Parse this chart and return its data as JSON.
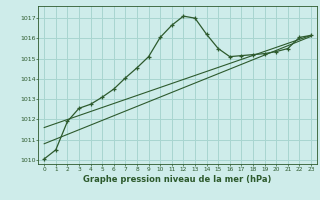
{
  "xlabel": "Graphe pression niveau de la mer (hPa)",
  "bg_color": "#ceecea",
  "grid_color": "#a8d5d0",
  "line_color": "#2d5a2d",
  "xlim": [
    -0.5,
    23.5
  ],
  "ylim": [
    1009.8,
    1017.6
  ],
  "yticks": [
    1010,
    1011,
    1012,
    1013,
    1014,
    1015,
    1016,
    1017
  ],
  "xticks": [
    0,
    1,
    2,
    3,
    4,
    5,
    6,
    7,
    8,
    9,
    10,
    11,
    12,
    13,
    14,
    15,
    16,
    17,
    18,
    19,
    20,
    21,
    22,
    23
  ],
  "main_x": [
    0,
    1,
    2,
    3,
    4,
    5,
    6,
    7,
    8,
    9,
    10,
    11,
    12,
    13,
    14,
    15,
    16,
    17,
    18,
    19,
    20,
    21,
    22,
    23
  ],
  "main_y": [
    1010.05,
    1010.5,
    1011.9,
    1012.55,
    1012.75,
    1013.1,
    1013.5,
    1014.05,
    1014.55,
    1015.1,
    1016.05,
    1016.65,
    1017.1,
    1017.0,
    1016.2,
    1015.5,
    1015.1,
    1015.15,
    1015.2,
    1015.25,
    1015.35,
    1015.5,
    1016.05,
    1016.15
  ],
  "line2_x": [
    0,
    23
  ],
  "line2_y": [
    1010.8,
    1016.1
  ],
  "line3_x": [
    0,
    23
  ],
  "line3_y": [
    1011.6,
    1016.15
  ]
}
